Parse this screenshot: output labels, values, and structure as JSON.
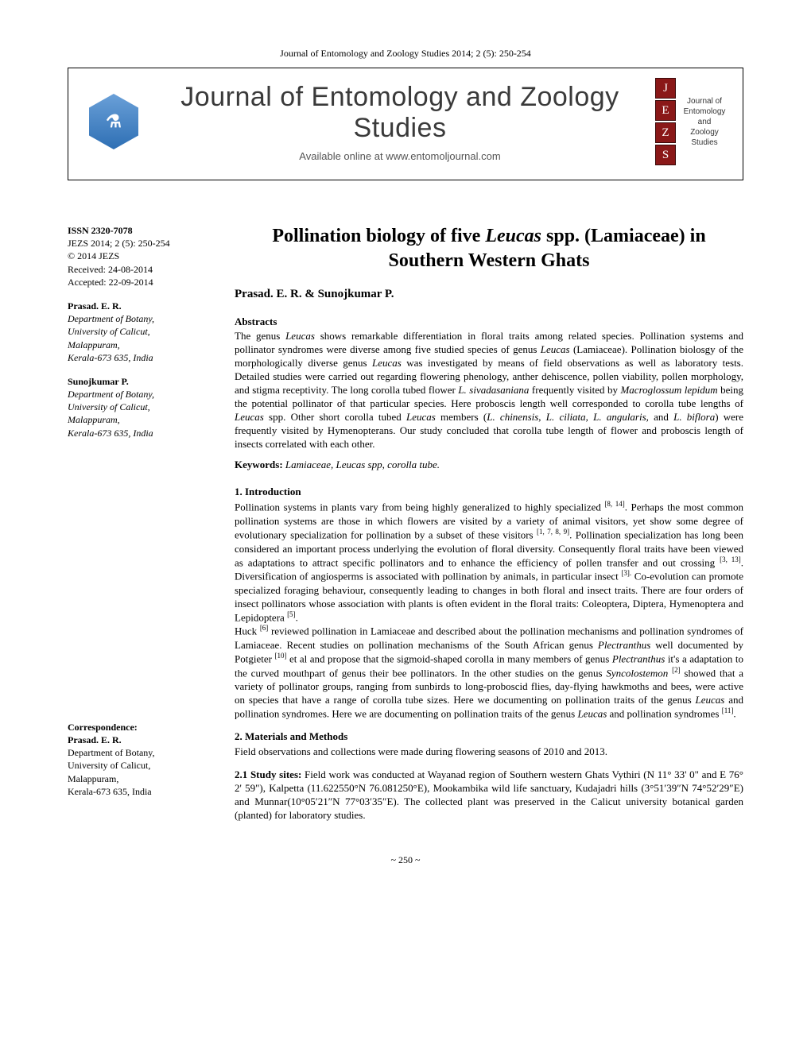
{
  "header_citation": "Journal of Entomology and Zoology Studies 2014; 2 (5): 250-254",
  "banner": {
    "journal_title": "Journal of Entomology and Zoology Studies",
    "subtitle": "Available online at www.entomoljournal.com",
    "tiles": [
      "J",
      "E",
      "Z",
      "S"
    ],
    "side_text_l1": "Journal of",
    "side_text_l2": "Entomology",
    "side_text_l3": "and",
    "side_text_l4": "Zoology Studies",
    "logo_glyph": "⚗"
  },
  "sidebar": {
    "issn": "ISSN 2320-7078",
    "issue": "JEZS 2014; 2 (5): 250-254",
    "copyright": "© 2014 JEZS",
    "received": "Received: 24-08-2014",
    "accepted": "Accepted: 22-09-2014",
    "author1_name": "Prasad. E. R.",
    "author1_line1": "Department of Botany,",
    "author1_line2": "University of Calicut,",
    "author1_line3": "Malappuram,",
    "author1_line4": "Kerala-673 635, India",
    "author2_name": "Sunojkumar P.",
    "author2_line1": "Department of Botany,",
    "author2_line2": "University of Calicut,",
    "author2_line3": "Malappuram,",
    "author2_line4": "Kerala-673 635, India",
    "corr_label": "Correspondence:",
    "corr_name": "Prasad. E. R.",
    "corr_line1": "Department of Botany,",
    "corr_line2": "University of Calicut,",
    "corr_line3": "Malappuram,",
    "corr_line4": "Kerala-673 635, India"
  },
  "title_pre": "Pollination biology of five ",
  "title_ital": "Leucas",
  "title_post": " spp. (Lamiaceae) in Southern Western Ghats",
  "authors": "Prasad. E. R. & Sunojkumar P.",
  "abstracts_head": "Abstracts",
  "abstract_html": "The genus <em>Leucas</em> shows remarkable differentiation in floral traits among related species. Pollination systems and pollinator syndromes were diverse among five studied species of genus <em>Leucas</em> (Lamiaceae). Pollination biolosgy of the morphologically diverse genus <em>Leucas</em> was investigated by means of field observations as well as laboratory tests. Detailed studies were carried out regarding flowering phenology, anther dehiscence, pollen viability, pollen morphology, and stigma receptivity. The long corolla tubed flower <em>L. sivadasaniana</em> frequently visited by <em>Macroglossum lepidum</em> being the potential pollinator of that particular species. Here proboscis length well corresponded to corolla tube lengths of <em>Leucas</em> spp. Other short corolla tubed <em>Leucas</em> members (<em>L. chinensis, L. ciliata, L. angularis,</em> and <em>L. biflora</em>) were frequently visited by Hymenopterans. Our study concluded that corolla tube length of flower and proboscis length of insects correlated with each other.",
  "keywords_label": "Keywords:",
  "keywords_text": "Lamiaceae, Leucas spp, corolla tube.",
  "intro_head": "1. Introduction",
  "intro_html": "Pollination systems in plants vary from being highly generalized to highly specialized <sup>[8, 14]</sup>. Perhaps the most common pollination systems are those in which flowers are visited by a variety of animal visitors, yet show some degree of evolutionary specialization for pollination by a subset of these visitors <sup>[1, 7, 8, 9]</sup>. Pollination specialization has long been considered an important process underlying the evolution of floral diversity. Consequently floral traits have been viewed as adaptations to attract specific pollinators and to enhance the efficiency of pollen transfer and out crossing <sup>[3, 13]</sup>. Diversification of angiosperms is associated with pollination by animals, in particular insect <sup>[3].</sup> Co-evolution can promote specialized foraging behaviour, consequently leading to changes in both floral and insect traits. There are four orders of insect pollinators whose association with plants is often evident in the floral traits: Coleoptera, Diptera, Hymenoptera and Lepidoptera <sup>[5]</sup>.<br>Huck <sup>[6]</sup> reviewed pollination in Lamiaceae and described about the pollination mechanisms and pollination syndromes of Lamiaceae. Recent studies on pollination mechanisms of the South African genus <em>Plectranthus</em> well documented by Potgieter <sup>[10]</sup> et al and propose that the sigmoid-shaped corolla in many members of genus <em>Plectranthus</em> it's a adaptation to the curved mouthpart of genus their bee pollinators. In the other studies on the genus <em>Syncolostemon</em> <sup>[2]</sup> showed that a variety of pollinator groups, ranging from sunbirds to long-proboscid flies, day-flying hawkmoths and bees, were active on species that have a range of corolla tube sizes. Here we documenting on pollination traits of the genus <em>Leucas</em> and pollination syndromes. Here we are documenting on pollination traits of the genus <em>Leucas</em> and pollination syndromes <sup>[11]</sup>.",
  "methods_head": "2. Materials and Methods",
  "methods_text": "Field observations and collections were made during flowering seasons of 2010 and 2013.",
  "study_head": "2.1 Study sites:",
  "study_text": " Field work was conducted at Wayanad region of Southern western Ghats Vythiri (N 11° 33' 0\" and E 76° 2' 59\"), Kalpetta (11.622550°N 76.081250°E), Mookambika wild life sanctuary, Kudajadri hills (3°51′39″N 74°52′29″E) and Munnar(10°05′21″N 77°03′35″E). The collected plant was preserved in the Calicut university botanical garden (planted) for laboratory studies.",
  "page_number": "~ 250 ~",
  "colors": {
    "text": "#000000",
    "background": "#ffffff",
    "tile_bg": "#8a1818",
    "hex_top": "#6aa0d8",
    "hex_bottom": "#2e6fb4",
    "banner_title": "#3a3a3a"
  },
  "typography": {
    "body_font": "Times New Roman",
    "title_size_pt": 18,
    "body_size_pt": 10,
    "sidebar_size_pt": 9
  }
}
